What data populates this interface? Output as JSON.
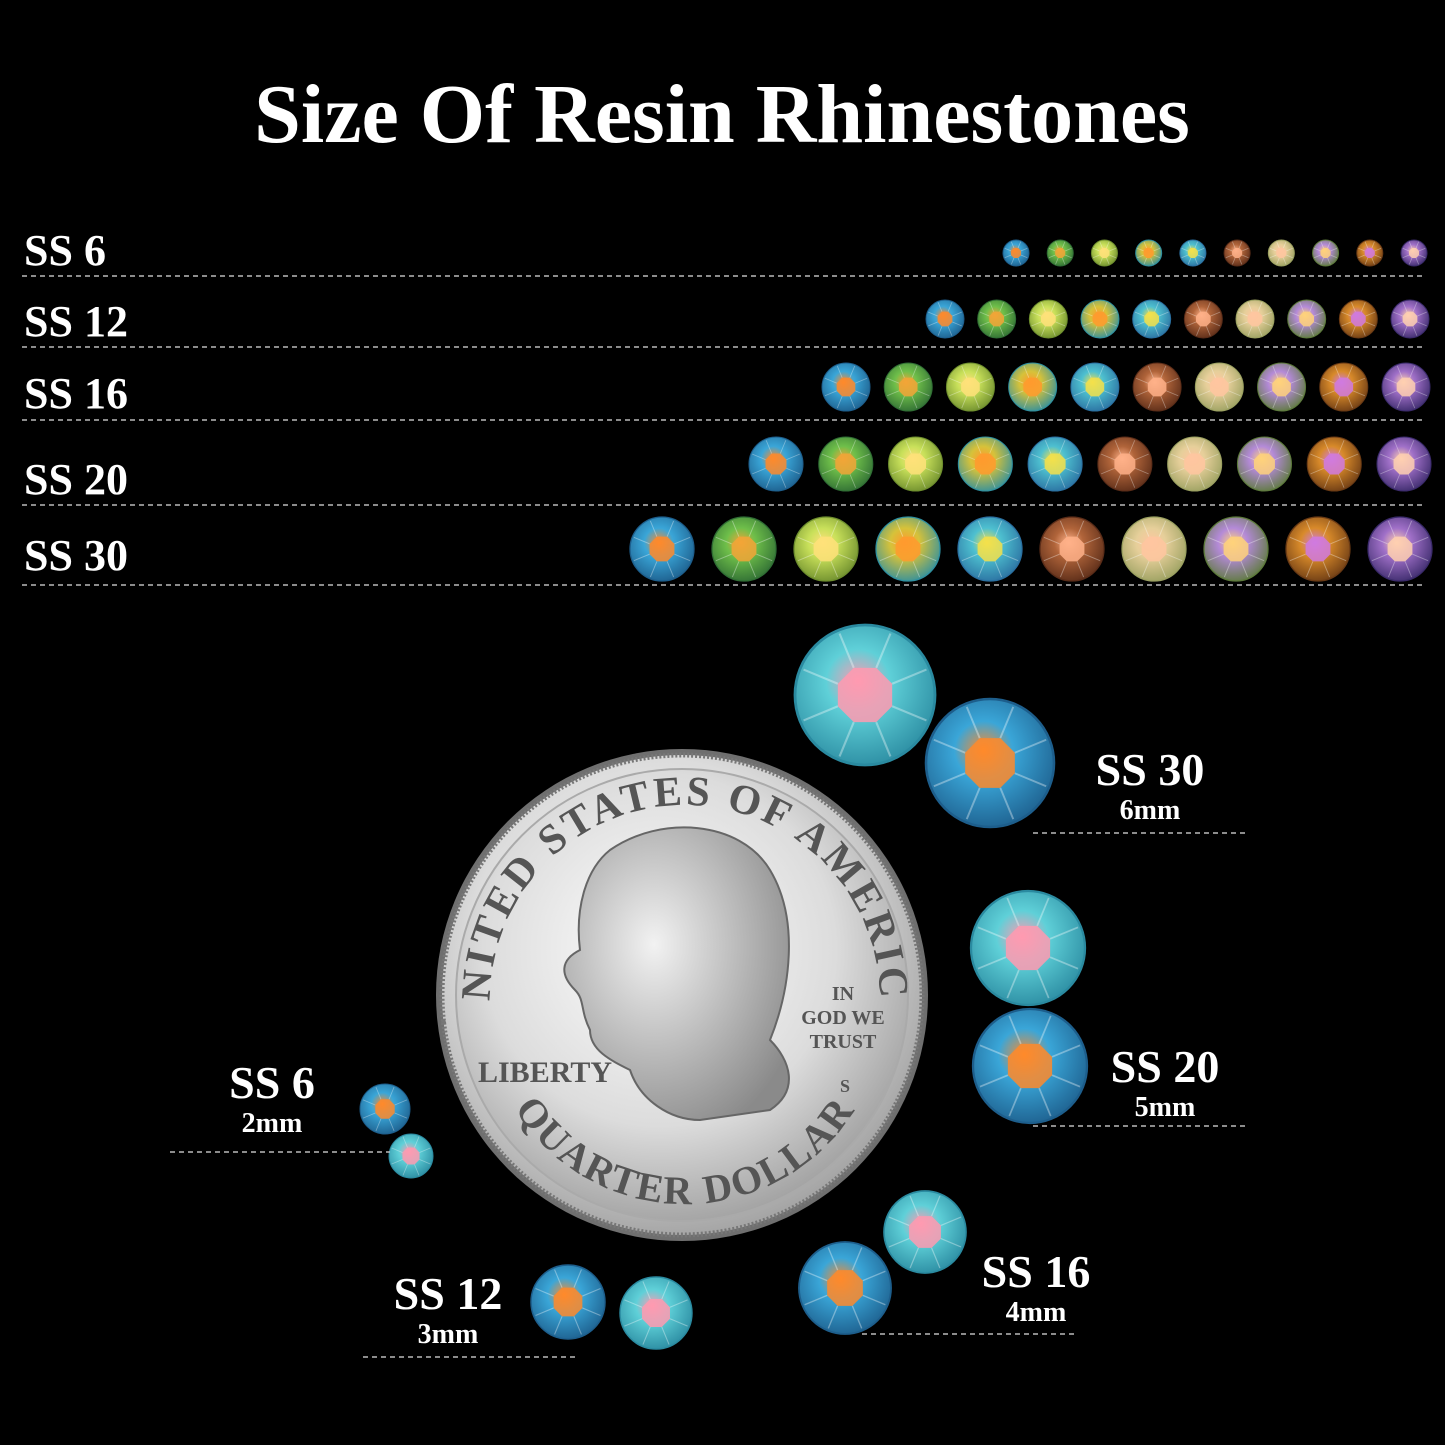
{
  "title": "Size Of Resin Rhinestones",
  "rows": [
    {
      "label": "SS 6"
    },
    {
      "label": "SS 12"
    },
    {
      "label": "SS 16"
    },
    {
      "label": "SS 20"
    },
    {
      "label": "SS 30"
    }
  ],
  "callouts": [
    {
      "label": "SS 30",
      "size": "6mm"
    },
    {
      "label": "SS 20",
      "size": "5mm"
    },
    {
      "label": "SS 16",
      "size": "4mm"
    },
    {
      "label": "SS 12",
      "size": "3mm"
    },
    {
      "label": "SS 6",
      "size": "2mm"
    }
  ],
  "coin": {
    "top": "UNITED STATES OF AMERICA",
    "motto": [
      "IN",
      "GOD WE",
      "TRUST"
    ],
    "left": "LIBERTY",
    "bottom": "QUARTER DOLLAR",
    "mint": "S"
  }
}
